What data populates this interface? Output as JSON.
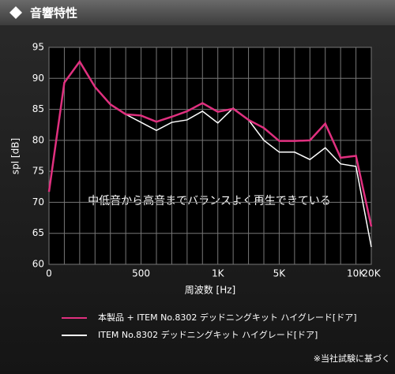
{
  "header": {
    "title": "音響特性"
  },
  "chart_data": {
    "type": "line",
    "annotation": "中低音から高音までバランスよく再生できている",
    "ylabel": "spl [dB]",
    "xlabel": "周波数 [Hz]",
    "categories": [
      "0",
      null,
      null,
      null,
      null,
      null,
      "500",
      null,
      null,
      null,
      null,
      "1K",
      null,
      null,
      null,
      "5K",
      null,
      null,
      null,
      null,
      "10K",
      "20K"
    ],
    "ylim": [
      60,
      95
    ],
    "yticks": [
      60,
      65,
      70,
      75,
      80,
      85,
      90,
      95
    ],
    "grid": true,
    "series": [
      {
        "name": "本製品 + ITEM No.8302 デッドニングキット ハイグレード[ドア]",
        "color": "#e0307f",
        "values": [
          71.7,
          89.3,
          92.7,
          88.6,
          85.8,
          84.2,
          84,
          83,
          83.8,
          84.7,
          86,
          84.6,
          85.1,
          83.3,
          82,
          79.9,
          79.9,
          80,
          82.7,
          77.2,
          77.5,
          66.1
        ]
      },
      {
        "name": "ITEM No.8302 デッドニングキット ハイグレード[ドア]",
        "color": "#ffffff",
        "values": [
          71.7,
          89.3,
          92.7,
          88.6,
          85.8,
          84.2,
          82.9,
          81.6,
          82.9,
          83.3,
          84.7,
          82.8,
          85.2,
          83.3,
          80,
          78.1,
          78.1,
          76.9,
          78.8,
          76.2,
          75.8,
          62.8
        ]
      }
    ],
    "footnote": "※当社試験に基づく"
  }
}
